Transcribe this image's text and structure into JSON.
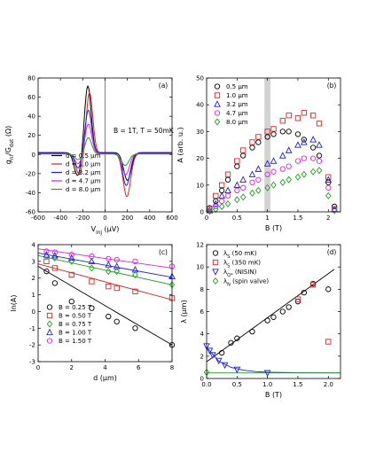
{
  "chart_data": [
    {
      "id": "a",
      "type": "line",
      "panel_label": "(a)",
      "xlabel_main": "V",
      "xlabel_sub": "inj",
      "xlabel_unit": " (µV)",
      "ylabel_g": "g",
      "ylabel_nl": "nl",
      "ylabel_slash": "/G",
      "ylabel_det": "det",
      "ylabel_unit": " (Ω)",
      "annotation": "B = 1T, T = 50mK",
      "xlim": [
        -600,
        600
      ],
      "ylim": [
        -60,
        80
      ],
      "xticks": [
        -600,
        -400,
        -200,
        0,
        200,
        400,
        600
      ],
      "yticks": [
        -60,
        -40,
        -20,
        0,
        20,
        40,
        60,
        80
      ],
      "series": [
        {
          "name": "d = 0.5 µm",
          "color": "#000000",
          "peak": 70,
          "dip": -29,
          "peak_x": -155,
          "dip_x": 200,
          "tail": 2
        },
        {
          "name": "d = 1.0 µm",
          "color": "#d62728",
          "peak": 64,
          "dip": -45,
          "peak_x": -140,
          "dip_x": 195,
          "tail": 1
        },
        {
          "name": "d = 3.2 µm",
          "color": "#1f1fe0",
          "peak": 45,
          "dip": -34,
          "peak_x": -150,
          "dip_x": 190,
          "tail": 1.5
        },
        {
          "name": "d = 4.7 µm",
          "color": "#e020e0",
          "peak": 31,
          "dip": -22,
          "peak_x": -150,
          "dip_x": 185,
          "tail": 1
        },
        {
          "name": "d = 8.0 µm",
          "color": "#20a020",
          "peak": 17,
          "dip": -12,
          "peak_x": -150,
          "dip_x": 180,
          "tail": 0.5
        }
      ]
    },
    {
      "id": "b",
      "type": "scatter",
      "panel_label": "(b)",
      "xlabel": "B (T)",
      "ylabel": "A (arb. u.)",
      "xlim": [
        0,
        2.2
      ],
      "ylim": [
        0,
        50
      ],
      "xticks": [
        0,
        0.5,
        1.0,
        1.5,
        2.0
      ],
      "xticklabels": [
        "0",
        "0.5",
        "1",
        "1.5",
        "2"
      ],
      "yticks": [
        0,
        10,
        20,
        30,
        40,
        50
      ],
      "shaded_band": [
        0.95,
        1.05
      ],
      "series": [
        {
          "name": "0.5 µm",
          "color": "#000000",
          "marker": "circle",
          "x": [
            0.05,
            0.15,
            0.25,
            0.35,
            0.5,
            0.6,
            0.75,
            0.85,
            1.0,
            1.1,
            1.25,
            1.35,
            1.5,
            1.6,
            1.75,
            1.85,
            2.0,
            2.1
          ],
          "y": [
            1.5,
            4,
            8,
            12,
            17,
            21,
            24,
            26,
            28,
            29,
            30,
            30,
            29,
            27,
            24,
            21,
            11,
            2
          ]
        },
        {
          "name": "1.0 µm",
          "color": "#d62728",
          "marker": "square",
          "x": [
            0.05,
            0.15,
            0.25,
            0.35,
            0.5,
            0.6,
            0.75,
            0.85,
            1.0,
            1.1,
            1.25,
            1.35,
            1.5,
            1.6,
            1.75,
            1.85,
            2.0,
            2.1
          ],
          "y": [
            1,
            6,
            10,
            14,
            19,
            23,
            26,
            28,
            30,
            31,
            34,
            36,
            35,
            37,
            36,
            33,
            13,
            1
          ]
        },
        {
          "name": "3.2 µm",
          "color": "#1f1fe0",
          "marker": "triangle",
          "x": [
            0.05,
            0.15,
            0.25,
            0.35,
            0.5,
            0.6,
            0.75,
            0.85,
            1.0,
            1.1,
            1.25,
            1.35,
            1.5,
            1.6,
            1.75,
            1.85,
            2.0,
            2.1
          ],
          "y": [
            0.5,
            3,
            6,
            8,
            10,
            12,
            14,
            16,
            18,
            19,
            21,
            23,
            25,
            26,
            27,
            25,
            12,
            1
          ]
        },
        {
          "name": "4.7 µm",
          "color": "#e020e0",
          "marker": "circle",
          "x": [
            0.05,
            0.15,
            0.25,
            0.35,
            0.5,
            0.6,
            0.75,
            0.85,
            1.0,
            1.1,
            1.25,
            1.35,
            1.5,
            1.6,
            1.75,
            1.85,
            2.0,
            2.1
          ],
          "y": [
            0.5,
            2,
            4,
            6,
            8,
            9,
            11,
            12,
            14,
            15,
            16,
            17,
            19,
            20,
            20,
            19,
            9,
            1
          ]
        },
        {
          "name": "8.0 µm",
          "color": "#20a020",
          "marker": "diamond",
          "x": [
            0.05,
            0.15,
            0.25,
            0.35,
            0.5,
            0.6,
            0.75,
            0.85,
            1.0,
            1.1,
            1.25,
            1.35,
            1.5,
            1.6,
            1.75,
            1.85,
            2.0,
            2.1
          ],
          "y": [
            0.2,
            1,
            2,
            3,
            4.5,
            5.5,
            7,
            8,
            9,
            10,
            11,
            12,
            13,
            14,
            15,
            15.5,
            6,
            0.5
          ]
        }
      ]
    },
    {
      "id": "c",
      "type": "scatter",
      "panel_label": "(c)",
      "xlabel": "d (µm)",
      "ylabel": "ln(A)",
      "xlim": [
        0,
        8
      ],
      "ylim": [
        -3,
        4
      ],
      "xticks": [
        0,
        2,
        4,
        6,
        8
      ],
      "yticks": [
        -3,
        -2,
        -1,
        0,
        1,
        2,
        3,
        4
      ],
      "series": [
        {
          "name": "B = 0.25 T",
          "color": "#000000",
          "marker": "circle",
          "x": [
            0.5,
            1.0,
            2.0,
            3.2,
            4.2,
            4.7,
            5.8,
            8.0
          ],
          "y": [
            2.4,
            1.7,
            0.6,
            0.2,
            -0.3,
            -0.6,
            -1.0,
            -2.0
          ],
          "fit": [
            [
              0,
              2.7
            ],
            [
              8,
              -2.0
            ]
          ]
        },
        {
          "name": "B = 0.50 T",
          "color": "#d62728",
          "marker": "square",
          "x": [
            0.5,
            1.0,
            2.0,
            3.2,
            4.2,
            4.7,
            5.8,
            8.0
          ],
          "y": [
            3.0,
            2.6,
            2.2,
            1.8,
            1.5,
            1.4,
            1.2,
            0.8
          ],
          "fit": [
            [
              0,
              2.85
            ],
            [
              8,
              0.7
            ]
          ]
        },
        {
          "name": "B = 0.75 T",
          "color": "#20a020",
          "marker": "diamond",
          "x": [
            0.5,
            1.0,
            2.0,
            3.2,
            4.2,
            4.7,
            5.8,
            8.0
          ],
          "y": [
            3.3,
            3.2,
            3.0,
            2.6,
            2.4,
            2.4,
            2.2,
            1.6
          ],
          "fit": [
            [
              0,
              3.35
            ],
            [
              8,
              1.6
            ]
          ]
        },
        {
          "name": "B = 1.00 T",
          "color": "#1f1fe0",
          "marker": "triangle",
          "x": [
            0.5,
            1.0,
            2.0,
            3.2,
            4.2,
            4.7,
            5.8,
            8.0
          ],
          "y": [
            3.4,
            3.35,
            3.2,
            3.0,
            2.8,
            2.7,
            2.5,
            2.1
          ],
          "fit": [
            [
              0,
              3.5
            ],
            [
              8,
              2.05
            ]
          ]
        },
        {
          "name": "B = 1.50 T",
          "color": "#e020e0",
          "marker": "circle",
          "x": [
            0.5,
            1.0,
            2.0,
            3.2,
            4.2,
            4.7,
            5.8,
            8.0
          ],
          "y": [
            3.6,
            3.55,
            3.4,
            3.3,
            3.15,
            3.1,
            3.0,
            2.7
          ],
          "fit": [
            [
              0,
              3.75
            ],
            [
              8,
              2.6
            ]
          ]
        }
      ]
    },
    {
      "id": "d",
      "type": "scatter",
      "panel_label": "(d)",
      "xlabel": "B (T)",
      "ylabel": "λ (µm)",
      "xlim": [
        0,
        2.2
      ],
      "ylim": [
        0,
        12
      ],
      "xticks": [
        0,
        0.5,
        1.0,
        1.5,
        2.0
      ],
      "xticklabels": [
        "0.0",
        "0.5",
        "1.0",
        "1.5",
        "2.0"
      ],
      "yticks": [
        0,
        2,
        4,
        6,
        8,
        10,
        12
      ],
      "legend": [
        {
          "main": "λ",
          "sub": "S",
          "rest": " (50 mK)",
          "color": "#000000",
          "marker": "circle"
        },
        {
          "main": "λ",
          "sub": "S",
          "rest": " (350 mK)",
          "color": "#d62728",
          "marker": "square"
        },
        {
          "main": "λ",
          "sub": "Q*",
          "rest": " (NISIN)",
          "color": "#1f1fe0",
          "marker": "triangle-down"
        },
        {
          "main": "λ",
          "sub": "N",
          "rest": " (spin valve)",
          "color": "#20a020",
          "marker": "diamond"
        }
      ],
      "series": [
        {
          "name": "λS (50 mK)",
          "color": "#000000",
          "marker": "circle",
          "x": [
            0.25,
            0.4,
            0.5,
            0.75,
            1.0,
            1.1,
            1.25,
            1.35,
            1.5,
            1.6,
            1.75,
            2.0
          ],
          "y": [
            2.3,
            3.2,
            3.6,
            4.2,
            5.2,
            5.5,
            6.0,
            6.4,
            6.9,
            7.7,
            8.5,
            8.0
          ]
        },
        {
          "name": "λS (350 mK)",
          "color": "#d62728",
          "marker": "square",
          "x": [
            1.5,
            1.75,
            2.0
          ],
          "y": [
            7.1,
            8.4,
            3.3
          ]
        },
        {
          "name": "λQ* (NISIN)",
          "color": "#1f1fe0",
          "marker": "triangle-down",
          "x": [
            0.0,
            0.05,
            0.1,
            0.2,
            0.3,
            0.5,
            1.0
          ],
          "y": [
            2.9,
            2.5,
            2.1,
            1.6,
            1.2,
            0.8,
            0.5
          ]
        },
        {
          "name": "λN (spin valve)",
          "color": "#20a020",
          "marker": "diamond",
          "x": [
            0.0
          ],
          "y": [
            0.55
          ]
        }
      ],
      "fits": [
        {
          "color": "#000000",
          "points": [
            [
              0.0,
              1.5
            ],
            [
              2.1,
              9.8
            ]
          ]
        },
        {
          "color": "#1f1fe0",
          "points": [
            [
              0.0,
              2.8
            ],
            [
              0.2,
              1.55
            ],
            [
              0.4,
              1.0
            ],
            [
              0.6,
              0.75
            ],
            [
              0.8,
              0.62
            ],
            [
              1.0,
              0.56
            ],
            [
              1.5,
              0.52
            ],
            [
              2.2,
              0.5
            ]
          ]
        },
        {
          "color": "#20a020",
          "points": [
            [
              0.0,
              0.5
            ],
            [
              2.2,
              0.5
            ]
          ]
        }
      ]
    }
  ]
}
